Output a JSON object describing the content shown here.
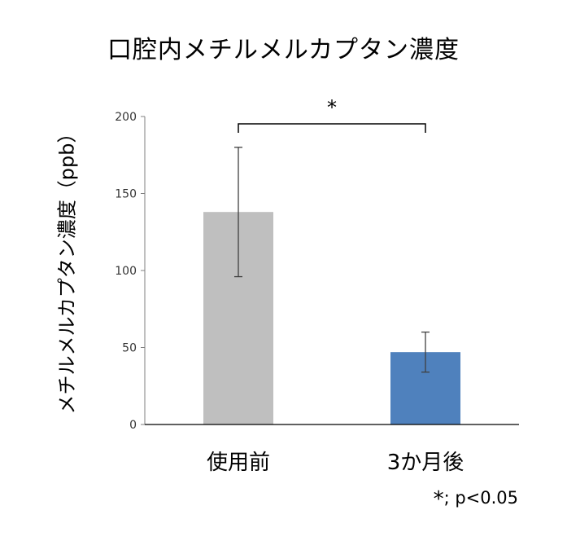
{
  "chart_data": {
    "type": "bar",
    "title": "口腔内メチルメルカプタン濃度",
    "ylabel": "メチルメルカプタン濃度（ppb）",
    "xlabel": "",
    "categories": [
      "使用前",
      "3か月後"
    ],
    "values": [
      138,
      47
    ],
    "error": [
      42,
      13
    ],
    "colors": [
      "#bfbfbf",
      "#4f81bd"
    ],
    "ylim": [
      0,
      200
    ],
    "yticks": [
      0,
      50,
      100,
      150,
      200
    ],
    "grid": false,
    "significance": {
      "between": [
        0,
        1
      ],
      "label": "*"
    },
    "footnote": {
      "symbol": "*",
      "text": "; p<0.05"
    }
  }
}
